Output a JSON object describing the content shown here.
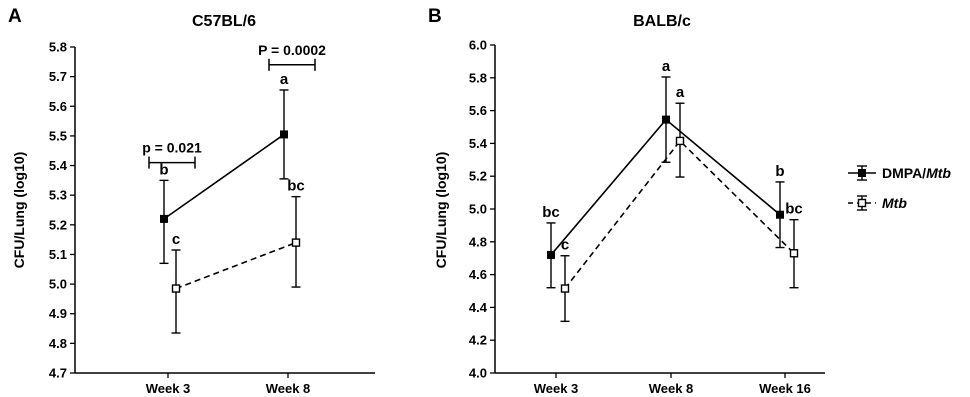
{
  "chart_data": [
    {
      "panel": "A",
      "type": "line",
      "title": "C57BL/6",
      "ylabel": "CFU/Lung (log10)",
      "xlabel": "",
      "categories": [
        "Week 3",
        "Week 8"
      ],
      "ylim": [
        4.7,
        5.8
      ],
      "yticks": [
        "4.7",
        "4.8",
        "4.9",
        "5.0",
        "5.1",
        "5.2",
        "5.3",
        "5.4",
        "5.5",
        "5.6",
        "5.7",
        "5.8"
      ],
      "grid": false,
      "series": [
        {
          "name": "DMPA/Mtb",
          "marker": "filled-square",
          "line": "solid",
          "values": [
            5.22,
            5.505
          ],
          "err_low": [
            5.07,
            5.355
          ],
          "err_high": [
            5.35,
            5.655
          ],
          "labels": [
            "b",
            "a"
          ]
        },
        {
          "name": "Mtb",
          "marker": "open-square",
          "line": "dashed",
          "values": [
            4.985,
            5.14
          ],
          "err_low": [
            4.835,
            4.99
          ],
          "err_high": [
            5.115,
            5.295
          ],
          "labels": [
            "c",
            "bc"
          ]
        }
      ],
      "comparisons": [
        {
          "text": "p = 0.021",
          "category": "Week 3",
          "level": 5.41
        },
        {
          "text": "P = 0.0002",
          "category": "Week 8",
          "level": 5.74
        }
      ]
    },
    {
      "panel": "B",
      "type": "line",
      "title": "BALB/c",
      "ylabel": "CFU/Lung (log10)",
      "xlabel": "",
      "categories": [
        "Week 3",
        "Week 8",
        "Week 16"
      ],
      "ylim": [
        4.0,
        6.0
      ],
      "yticks": [
        "4.0",
        "4.2",
        "4.4",
        "4.6",
        "4.8",
        "5.0",
        "5.2",
        "5.4",
        "5.6",
        "5.8",
        "6.0"
      ],
      "grid": false,
      "series": [
        {
          "name": "DMPA/Mtb",
          "marker": "filled-square",
          "line": "solid",
          "values": [
            4.72,
            5.545,
            4.965
          ],
          "err_low": [
            4.52,
            5.285,
            4.765
          ],
          "err_high": [
            4.915,
            5.805,
            5.165
          ],
          "labels": [
            "bc",
            "a",
            "b"
          ]
        },
        {
          "name": "Mtb",
          "marker": "open-square",
          "line": "dashed",
          "values": [
            4.515,
            5.415,
            4.73
          ],
          "err_low": [
            4.315,
            5.195,
            4.52
          ],
          "err_high": [
            4.715,
            5.645,
            4.935
          ],
          "labels": [
            "c",
            "a",
            "bc"
          ]
        }
      ]
    }
  ],
  "legend": {
    "position": "right",
    "entries": [
      {
        "prefix": "DMPA/",
        "italic": "Mtb",
        "style": "solid-filled"
      },
      {
        "prefix": "",
        "italic": "Mtb",
        "style": "dashed-open"
      }
    ]
  }
}
